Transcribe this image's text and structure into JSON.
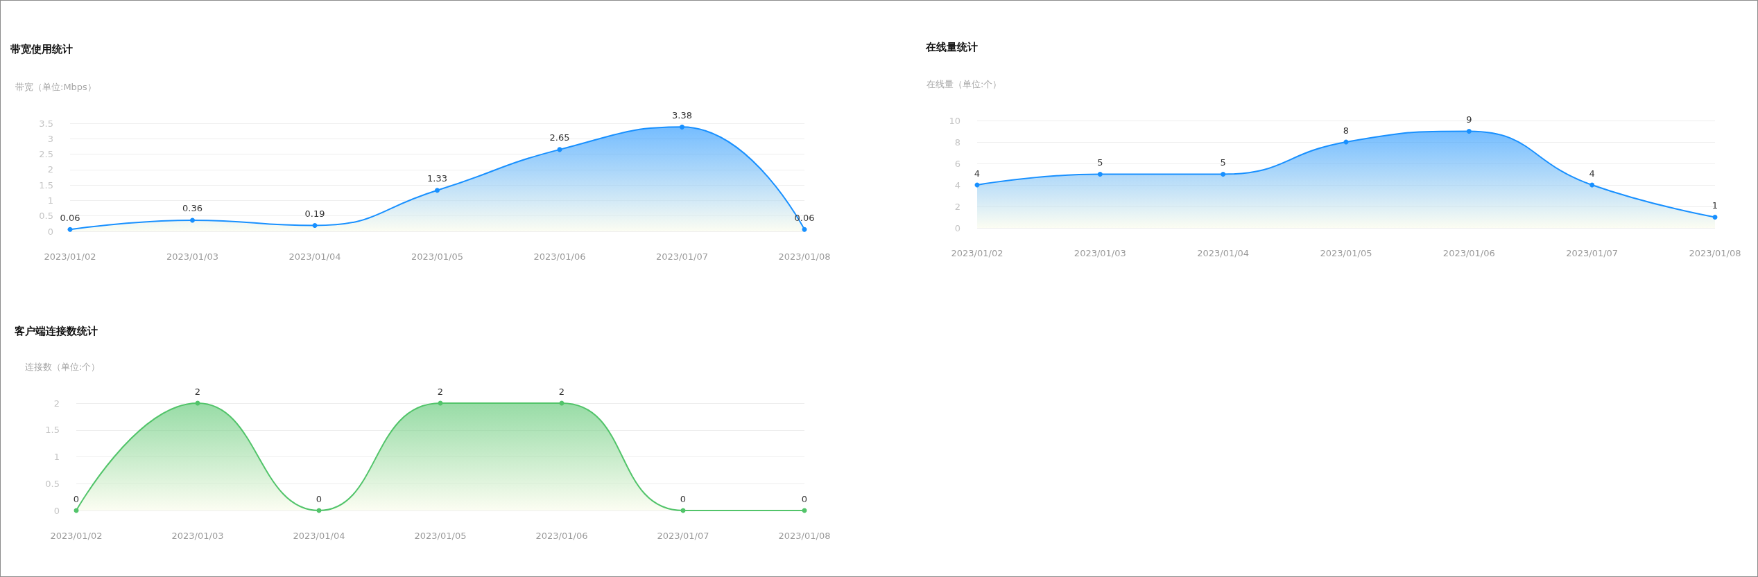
{
  "chart_data": [
    {
      "type": "area",
      "title": "带宽使用统计",
      "ylabel": "带宽（单位:Mbps）",
      "categories": [
        "2023/01/02",
        "2023/01/03",
        "2023/01/04",
        "2023/01/05",
        "2023/01/06",
        "2023/01/07",
        "2023/01/08"
      ],
      "values": [
        0.06,
        0.36,
        0.19,
        1.33,
        2.65,
        3.38,
        0.06
      ],
      "color": "#1890ff",
      "ylim": [
        0,
        3.5
      ],
      "yticks": [
        0,
        0.5,
        1,
        1.5,
        2,
        2.5,
        3,
        3.5
      ],
      "grid": "y",
      "data_labels": true,
      "marker": "circle"
    },
    {
      "type": "area",
      "title": "在线量统计",
      "ylabel": "在线量（单位:个）",
      "categories": [
        "2023/01/02",
        "2023/01/03",
        "2023/01/04",
        "2023/01/05",
        "2023/01/06",
        "2023/01/07",
        "2023/01/08"
      ],
      "values": [
        4,
        5,
        5,
        8,
        9,
        4,
        1
      ],
      "color": "#1890ff",
      "ylim": [
        0,
        10
      ],
      "yticks": [
        0,
        2,
        4,
        6,
        8,
        10
      ],
      "grid": "y",
      "data_labels": true,
      "marker": "circle"
    },
    {
      "type": "area",
      "title": "客户端连接数统计",
      "ylabel": "连接数（单位:个）",
      "categories": [
        "2023/01/02",
        "2023/01/03",
        "2023/01/04",
        "2023/01/05",
        "2023/01/06",
        "2023/01/07",
        "2023/01/08"
      ],
      "values": [
        0,
        2,
        0,
        2,
        2,
        0,
        0
      ],
      "color": "#52c46a",
      "ylim": [
        0,
        2
      ],
      "yticks": [
        0,
        0.5,
        1,
        1.5,
        2
      ],
      "grid": "y",
      "data_labels": true,
      "marker": "circle"
    }
  ]
}
